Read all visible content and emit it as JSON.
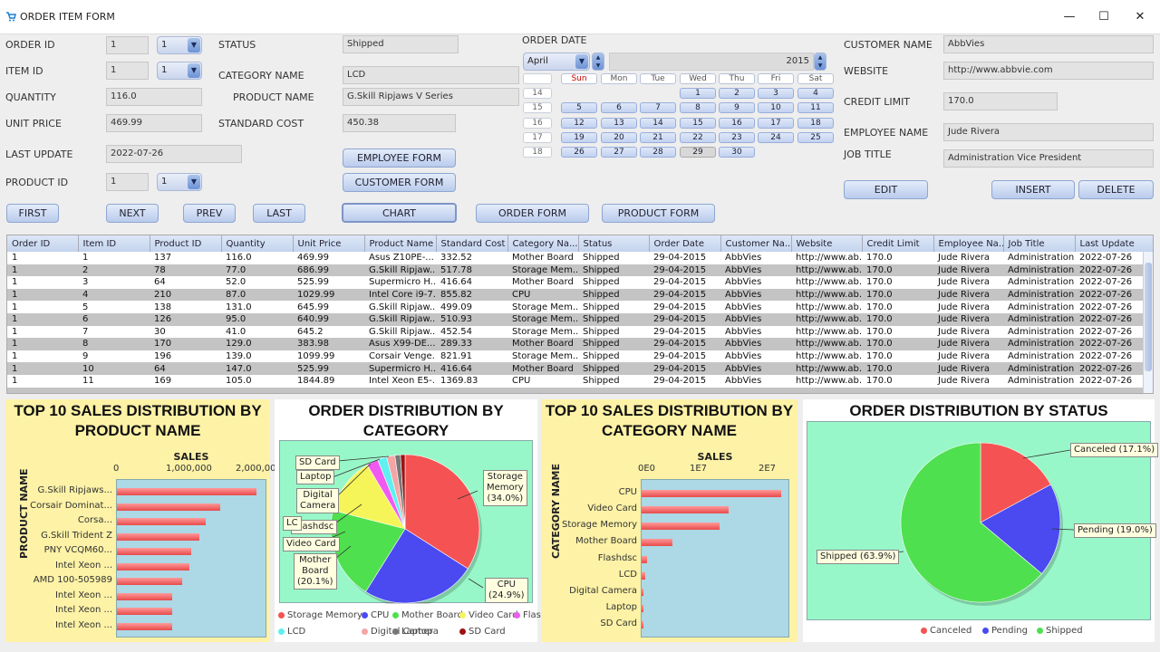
{
  "window": {
    "title": "ORDER ITEM FORM",
    "min": "—",
    "max": "☐",
    "close": "✕"
  },
  "form": {
    "order_id_label": "ORDER ID",
    "order_id": "1",
    "order_id_combo": "1",
    "item_id_label": "ITEM ID",
    "item_id": "1",
    "item_id_combo": "1",
    "quantity_label": "QUANTITY",
    "quantity": "116.0",
    "unit_price_label": "UNIT PRICE",
    "unit_price": "469.99",
    "last_update_label": "LAST UPDATE",
    "last_update": "2022-07-26",
    "product_id_label": "PRODUCT ID",
    "product_id": "1",
    "product_id_combo": "1",
    "status_label": "STATUS",
    "status": "Shipped",
    "category_label": "CATEGORY NAME",
    "category": "LCD",
    "product_name_label": "PRODUCT NAME",
    "product_name": "G.Skill Ripjaws V Series",
    "standard_cost_label": "STANDARD COST",
    "standard_cost": "450.38",
    "order_date_label": "ORDER DATE",
    "customer_name_label": "CUSTOMER NAME",
    "customer_name": "AbbVies",
    "website_label": "WEBSITE",
    "website": "http://www.abbvie.com",
    "credit_limit_label": "CREDIT LIMIT",
    "credit_limit": "170.0",
    "employee_name_label": "EMPLOYEE NAME",
    "employee_name": "Jude Rivera",
    "job_title_label": "JOB TITLE",
    "job_title": "Administration Vice President"
  },
  "buttons": {
    "employee_form": "EMPLOYEE FORM",
    "customer_form": "CUSTOMER FORM",
    "first": "FIRST",
    "next": "NEXT",
    "prev": "PREV",
    "last": "LAST",
    "chart": "CHART",
    "order_form": "ORDER FORM",
    "product_form": "PRODUCT FORM",
    "edit": "EDIT",
    "insert": "INSERT",
    "delete": "DELETE"
  },
  "calendar": {
    "month": "April",
    "year": "2015",
    "days_header": [
      "Sun",
      "Mon",
      "Tue",
      "Wed",
      "Thu",
      "Fri",
      "Sat"
    ],
    "weeks": [
      {
        "wk": "14",
        "days": [
          "",
          "",
          "",
          "1",
          "2",
          "3",
          "4"
        ]
      },
      {
        "wk": "15",
        "days": [
          "5",
          "6",
          "7",
          "8",
          "9",
          "10",
          "11"
        ]
      },
      {
        "wk": "16",
        "days": [
          "12",
          "13",
          "14",
          "15",
          "16",
          "17",
          "18"
        ]
      },
      {
        "wk": "17",
        "days": [
          "19",
          "20",
          "21",
          "22",
          "23",
          "24",
          "25"
        ]
      },
      {
        "wk": "18",
        "days": [
          "26",
          "27",
          "28",
          "29",
          "30",
          "",
          ""
        ]
      }
    ],
    "selected": "29"
  },
  "table": {
    "headers": [
      "Order ID",
      "Item ID",
      "Product ID",
      "Quantity",
      "Unit Price",
      "Product Name",
      "Standard Cost",
      "Category Na...",
      "Status",
      "Order Date",
      "Customer Na...",
      "Website",
      "Credit Limit",
      "Employee Na...",
      "Job Title",
      "Last Update"
    ],
    "rows": [
      [
        "1",
        "1",
        "137",
        "116.0",
        "469.99",
        "Asus Z10PE-...",
        "332.52",
        "Mother Board",
        "Shipped",
        "29-04-2015",
        "AbbVies",
        "http://www.ab...",
        "170.0",
        "Jude Rivera",
        "Administration ...",
        "2022-07-26"
      ],
      [
        "1",
        "2",
        "78",
        "77.0",
        "686.99",
        "G.Skill Ripjaw...",
        "517.78",
        "Storage Mem...",
        "Shipped",
        "29-04-2015",
        "AbbVies",
        "http://www.ab...",
        "170.0",
        "Jude Rivera",
        "Administration ...",
        "2022-07-26"
      ],
      [
        "1",
        "3",
        "64",
        "52.0",
        "525.99",
        "Supermicro H...",
        "416.64",
        "Mother Board",
        "Shipped",
        "29-04-2015",
        "AbbVies",
        "http://www.ab...",
        "170.0",
        "Jude Rivera",
        "Administration ...",
        "2022-07-26"
      ],
      [
        "1",
        "4",
        "210",
        "87.0",
        "1029.99",
        "Intel Core i9-7...",
        "855.82",
        "CPU",
        "Shipped",
        "29-04-2015",
        "AbbVies",
        "http://www.ab...",
        "170.0",
        "Jude Rivera",
        "Administration ...",
        "2022-07-26"
      ],
      [
        "1",
        "5",
        "138",
        "131.0",
        "645.99",
        "G.Skill Ripjaw...",
        "499.09",
        "Storage Mem...",
        "Shipped",
        "29-04-2015",
        "AbbVies",
        "http://www.ab...",
        "170.0",
        "Jude Rivera",
        "Administration ...",
        "2022-07-26"
      ],
      [
        "1",
        "6",
        "126",
        "95.0",
        "640.99",
        "G.Skill Ripjaw...",
        "510.93",
        "Storage Mem...",
        "Shipped",
        "29-04-2015",
        "AbbVies",
        "http://www.ab...",
        "170.0",
        "Jude Rivera",
        "Administration ...",
        "2022-07-26"
      ],
      [
        "1",
        "7",
        "30",
        "41.0",
        "645.2",
        "G.Skill Ripjaw...",
        "452.54",
        "Storage Mem...",
        "Shipped",
        "29-04-2015",
        "AbbVies",
        "http://www.ab...",
        "170.0",
        "Jude Rivera",
        "Administration ...",
        "2022-07-26"
      ],
      [
        "1",
        "8",
        "170",
        "129.0",
        "383.98",
        "Asus X99-DE...",
        "289.33",
        "Mother Board",
        "Shipped",
        "29-04-2015",
        "AbbVies",
        "http://www.ab...",
        "170.0",
        "Jude Rivera",
        "Administration ...",
        "2022-07-26"
      ],
      [
        "1",
        "9",
        "196",
        "139.0",
        "1099.99",
        "Corsair Venge...",
        "821.91",
        "Storage Mem...",
        "Shipped",
        "29-04-2015",
        "AbbVies",
        "http://www.ab...",
        "170.0",
        "Jude Rivera",
        "Administration ...",
        "2022-07-26"
      ],
      [
        "1",
        "10",
        "64",
        "147.0",
        "525.99",
        "Supermicro H...",
        "416.64",
        "Mother Board",
        "Shipped",
        "29-04-2015",
        "AbbVies",
        "http://www.ab...",
        "170.0",
        "Jude Rivera",
        "Administration ...",
        "2022-07-26"
      ],
      [
        "1",
        "11",
        "169",
        "105.0",
        "1844.89",
        "Intel Xeon E5-...",
        "1369.83",
        "CPU",
        "Shipped",
        "29-04-2015",
        "AbbVies",
        "http://www.ab...",
        "170.0",
        "Jude Rivera",
        "Administration ...",
        "2022-07-26"
      ]
    ]
  },
  "chart_data": [
    {
      "type": "bar",
      "orientation": "horizontal",
      "title": "TOP 10 SALES DISTRIBUTION BY PRODUCT NAME",
      "xlabel": "SALES",
      "ylabel": "PRODUCT NAME",
      "xticks": [
        "0",
        "1,000,000",
        "2,000,000"
      ],
      "xlim": [
        0,
        2800000
      ],
      "categories": [
        "G.Skill Ripjaws...",
        "Corsair Dominat...",
        "Corsa...",
        "G.Skill Trident Z",
        "PNY VCQM60...",
        "Intel Xeon ...",
        "AMD 100-505989",
        "Intel Xeon ...",
        "Intel Xeon ...",
        "Intel Xeon ..."
      ],
      "values": [
        2600000,
        1930000,
        1660000,
        1540000,
        1390000,
        1350000,
        1210000,
        1030000,
        1030000,
        1030000
      ],
      "color": "#e84a4a",
      "bg": "#add8e6",
      "panel_bg": "#fdf2a6"
    },
    {
      "type": "pie",
      "title": "ORDER DISTRIBUTION BY CATEGORY",
      "bg": "#98f7c8",
      "panel_bg": "#ffffff",
      "slices": [
        {
          "label": "Storage Memory",
          "value": 34.0,
          "color": "#f55353"
        },
        {
          "label": "CPU",
          "value": 24.9,
          "color": "#4a4af0"
        },
        {
          "label": "Mother Board",
          "value": 20.1,
          "color": "#4fe04f"
        },
        {
          "label": "Video Card",
          "value": 12.5,
          "color": "#f5f55a"
        },
        {
          "label": "Flashdsc",
          "value": 2.5,
          "color": "#f05af0"
        },
        {
          "label": "LCD",
          "value": 2.0,
          "color": "#5ff0f0"
        },
        {
          "label": "Digital Camera",
          "value": 1.8,
          "color": "#f5a5a5"
        },
        {
          "label": "Laptop",
          "value": 1.2,
          "color": "#777777"
        },
        {
          "label": "SD Card",
          "value": 1.0,
          "color": "#a01010"
        }
      ],
      "callouts": [
        "Storage\nMemory\n(34.0%)",
        "CPU\n(24.9%)",
        "Mother\nBoard\n(20.1%)",
        "Video Card",
        "Flashdsc",
        "LC",
        "Digital\nCamera",
        "Laptop",
        "SD Card"
      ]
    },
    {
      "type": "bar",
      "orientation": "horizontal",
      "title": "TOP 10 SALES DISTRIBUTION BY CATEGORY NAME",
      "xlabel": "SALES",
      "ylabel": "CATEGORY NAME",
      "xticks": [
        "0E0",
        "1E7",
        "2E7"
      ],
      "xlim": [
        0,
        21000000
      ],
      "categories": [
        "CPU",
        "Video Card",
        "Storage Memory",
        "Mother Board",
        "Flashdsc",
        "LCD",
        "Digital Camera",
        "Laptop",
        "SD Card"
      ],
      "values": [
        19700000,
        12300000,
        11000000,
        4400000,
        800000,
        500000,
        300000,
        200000,
        100000
      ],
      "color": "#e84a4a",
      "bg": "#add8e6",
      "panel_bg": "#fdf2a6"
    },
    {
      "type": "pie",
      "title": "ORDER DISTRIBUTION BY STATUS",
      "bg": "#98f7c8",
      "panel_bg": "#ffffff",
      "slices": [
        {
          "label": "Canceled",
          "value": 17.1,
          "color": "#f55353"
        },
        {
          "label": "Pending",
          "value": 19.0,
          "color": "#4a4af0"
        },
        {
          "label": "Shipped",
          "value": 63.9,
          "color": "#4fe04f"
        }
      ],
      "callouts": [
        "Canceled (17.1%)",
        "Pending (19.0%)",
        "Shipped (63.9%)"
      ]
    }
  ]
}
